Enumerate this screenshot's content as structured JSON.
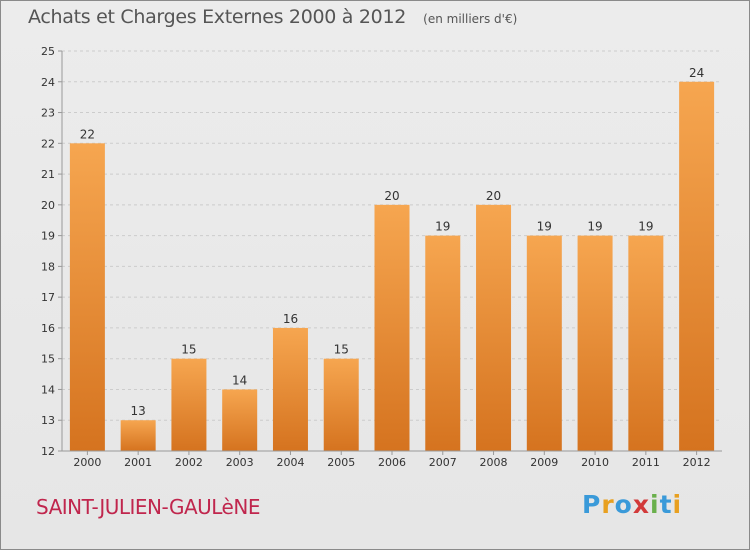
{
  "header": {
    "title": "Achats et Charges Externes 2000 à 2012",
    "unit": "(en milliers d'€)"
  },
  "footer": {
    "commune": "SAINT-JULIEN-GAULèNE",
    "brand_letters": [
      {
        "char": "P",
        "color": "#3a9ad9"
      },
      {
        "char": "r",
        "color": "#e8a020"
      },
      {
        "char": "o",
        "color": "#3a9ad9"
      },
      {
        "char": "x",
        "color": "#d23a3a"
      },
      {
        "char": "i",
        "color": "#6ab04c"
      },
      {
        "char": "t",
        "color": "#3a9ad9"
      },
      {
        "char": "i",
        "color": "#e8a020"
      }
    ]
  },
  "colors": {
    "bar_top": "#f6a650",
    "bar_bottom": "#d5731f",
    "axis": "#999999",
    "grid": "#cccccc"
  },
  "chart_data": {
    "type": "bar",
    "categories": [
      "2000",
      "2001",
      "2002",
      "2003",
      "2004",
      "2005",
      "2006",
      "2007",
      "2008",
      "2009",
      "2010",
      "2011",
      "2012"
    ],
    "values": [
      22,
      13,
      15,
      14,
      16,
      15,
      20,
      19,
      20,
      19,
      19,
      19,
      24
    ],
    "data_labels": [
      "22",
      "13",
      "15",
      "14",
      "16",
      "15",
      "20",
      "19",
      "20",
      "19",
      "19",
      "19",
      "24"
    ],
    "ylim": [
      12,
      25
    ],
    "yticks": [
      "12",
      "13",
      "14",
      "15",
      "16",
      "17",
      "18",
      "19",
      "20",
      "21",
      "22",
      "23",
      "24",
      "25"
    ],
    "grid": true,
    "grid_style": "dashed-horizontal"
  }
}
